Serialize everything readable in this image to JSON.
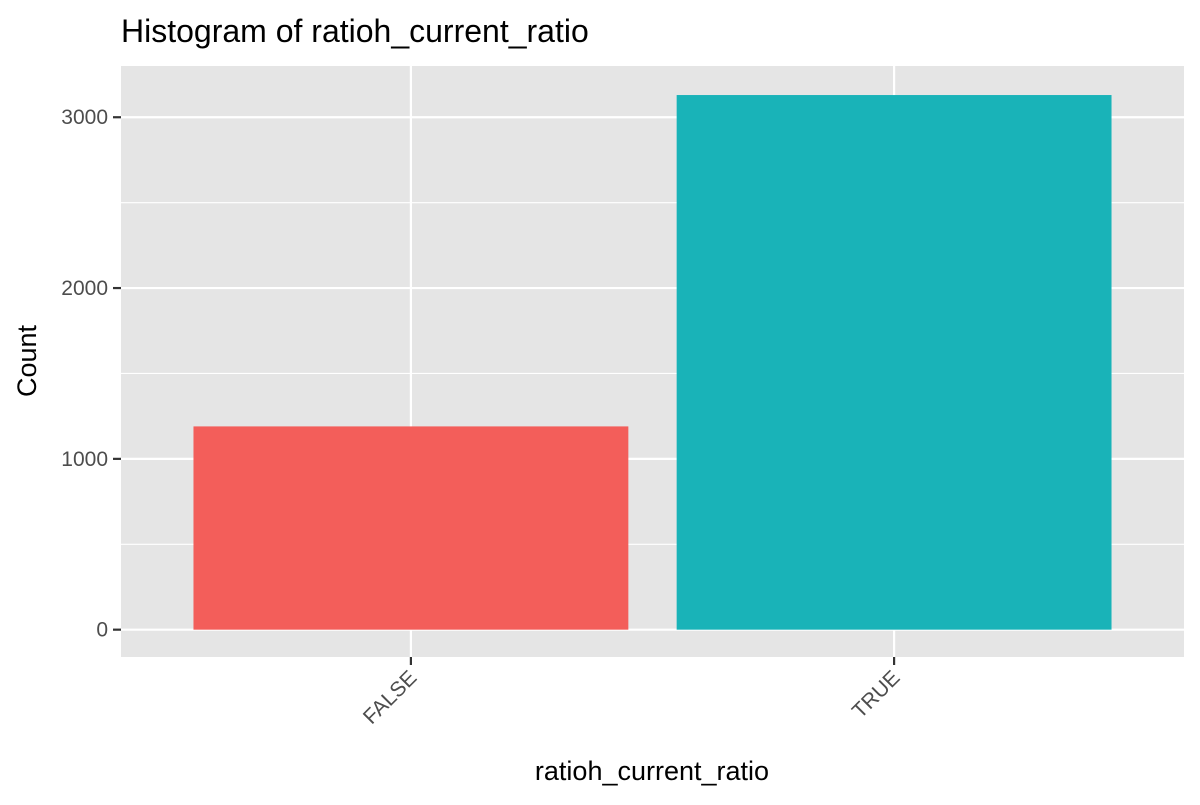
{
  "chart_data": {
    "type": "bar",
    "title": "Histogram of ratioh_current_ratio",
    "xlabel": "ratioh_current_ratio",
    "ylabel": "Count",
    "categories": [
      "FALSE",
      "TRUE"
    ],
    "values": [
      1190,
      3130
    ],
    "ylim": [
      -160,
      3300
    ],
    "yticks": [
      0,
      1000,
      2000,
      3000
    ],
    "ytick_labels": [
      "0",
      "1000",
      "2000",
      "3000"
    ],
    "bar_colors": [
      "#F35E5A",
      "#19B3B8"
    ],
    "panel_background": "#E5E5E5",
    "grid": true,
    "grid_color": "#FFFFFF",
    "legend": "none"
  }
}
